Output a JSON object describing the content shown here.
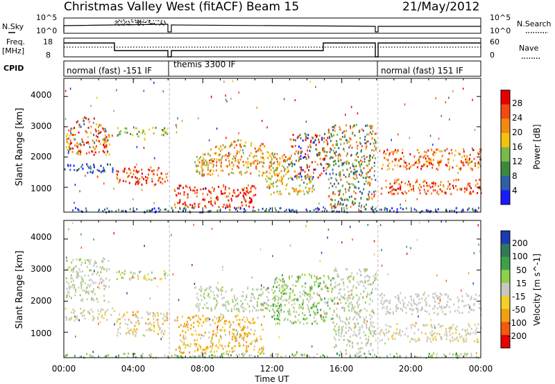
{
  "header": {
    "title": "Christmas Valley West (fitACF)",
    "beam": "Beam 15",
    "date": "21/May/2012"
  },
  "nsky_panel": {
    "left_label": "N.Sky",
    "right_label": "N.Search",
    "left_ticks": [
      "10^5",
      "10^0"
    ],
    "right_ticks": [
      "10^5",
      "10^0"
    ]
  },
  "freq_panel": {
    "left_label_1": "Freq.",
    "left_label_2": "[MHz]",
    "right_label": "Nave",
    "left_ticks": [
      "18",
      "8"
    ],
    "right_ticks": [
      "60",
      "0"
    ]
  },
  "cpid_panel": {
    "label": "CPID",
    "modes": [
      "normal (fast) -151 IF",
      "themis 3300 IF",
      "normal (fast) 151 IF"
    ]
  },
  "chart_data": [
    {
      "type": "heatmap",
      "name": "power",
      "xlabel": "",
      "ylabel": "Slant Range [km]",
      "yticks": [
        "1000",
        "2000",
        "3000",
        "4000"
      ],
      "ylim": [
        180,
        4600
      ],
      "colorbar_label": "Power [dB]",
      "colorbar_ticks": [
        "4",
        "8",
        "12",
        "16",
        "20",
        "24",
        "28"
      ],
      "colors": [
        "#1a1aff",
        "#2e5fa8",
        "#3b8a3b",
        "#7ab84a",
        "#f2c20f",
        "#f28a12",
        "#f24a10",
        "#e80000"
      ]
    },
    {
      "type": "heatmap",
      "name": "velocity",
      "xlabel": "Time UT",
      "ylabel": "Slant Range [km]",
      "yticks": [
        "1000",
        "2000",
        "3000",
        "4000"
      ],
      "ylim": [
        180,
        4600
      ],
      "xticks": [
        "00:00",
        "04:00",
        "08:00",
        "12:00",
        "16:00",
        "20:00",
        "00:00"
      ],
      "colorbar_label": "Velocity [m s^-1]",
      "colorbar_ticks": [
        "200",
        "100",
        "50",
        "15",
        "-15",
        "-50",
        "-100",
        "-200"
      ],
      "colors": [
        "#1a3ab8",
        "#2e7a5a",
        "#3ea04a",
        "#8ed04a",
        "#c8c8c0",
        "#f2d02a",
        "#f2a012",
        "#f25a10",
        "#e80000"
      ]
    }
  ]
}
